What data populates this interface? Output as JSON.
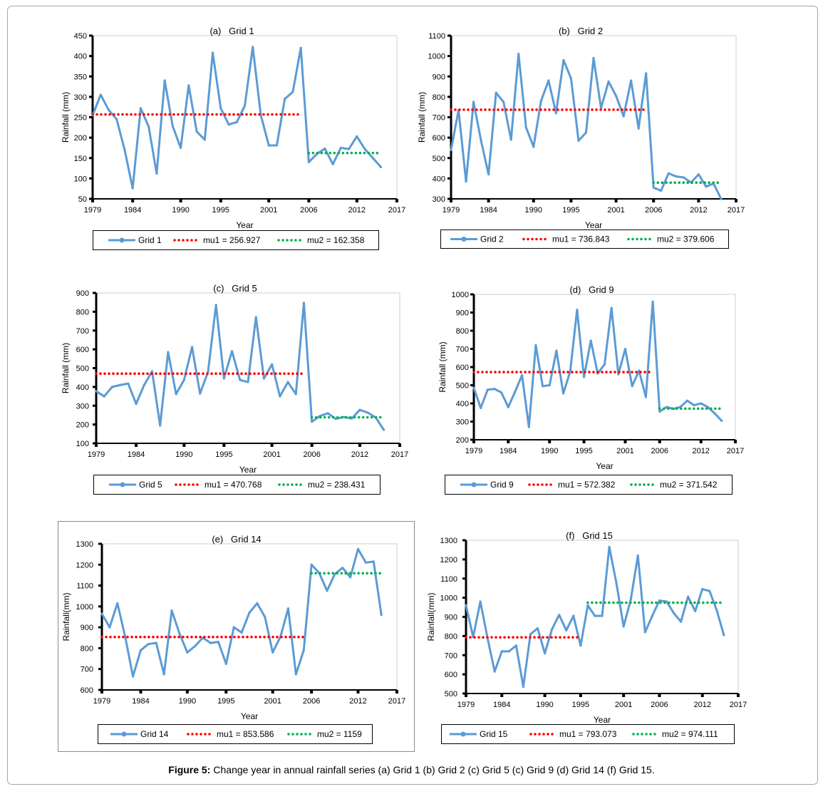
{
  "colors": {
    "rainfall_line": "#5B9BD5",
    "mu1_line": "#FF0000",
    "mu2_line": "#00B050",
    "frame": "#A6A6A6"
  },
  "figure": {
    "caption_label": "Figure 5:",
    "caption_text": "Change year in annual rainfall series (a) Grid 1 (b) Grid 2 (c) Grid 5 (c) Grid 9 (d) Grid 14 (f) Grid 15."
  },
  "chart_data": [
    {
      "type": "line",
      "title": "(a)   Grid 1",
      "xlabel": "Year",
      "ylabel": "Rainfall (mm)",
      "xlim": [
        1979,
        2017
      ],
      "ylim": [
        50,
        450
      ],
      "xticks": [
        1979,
        1984,
        1990,
        1995,
        2001,
        2006,
        2012,
        2017
      ],
      "yticks": [
        50,
        100,
        150,
        200,
        250,
        300,
        350,
        400,
        450
      ],
      "grid": false,
      "legend": "bottom",
      "x": [
        1979,
        1980,
        1981,
        1982,
        1983,
        1984,
        1985,
        1986,
        1987,
        1988,
        1989,
        1990,
        1991,
        1992,
        1993,
        1994,
        1995,
        1996,
        1997,
        1998,
        1999,
        2000,
        2001,
        2002,
        2003,
        2004,
        2005,
        2006,
        2007,
        2008,
        2009,
        2010,
        2011,
        2012,
        2013,
        2014,
        2015
      ],
      "series": [
        {
          "name": "Grid 1",
          "values": [
            255,
            305,
            268,
            245,
            170,
            76,
            272,
            227,
            112,
            340,
            228,
            175,
            328,
            215,
            195,
            408,
            272,
            232,
            238,
            278,
            422,
            256,
            181,
            181,
            295,
            312,
            420,
            140,
            160,
            173,
            135,
            175,
            172,
            203,
            172,
            150,
            128
          ]
        },
        {
          "name": "mu1 = 256.927",
          "x": [
            1979,
            2005
          ],
          "values": [
            256.927,
            256.927
          ]
        },
        {
          "name": "mu2 = 162.358",
          "x": [
            2006,
            2015
          ],
          "values": [
            162.358,
            162.358
          ]
        }
      ]
    },
    {
      "type": "line",
      "title": "(b)   Grid 2",
      "xlabel": "Year",
      "ylabel": "Rainfall (mm)",
      "xlim": [
        1979,
        2017
      ],
      "ylim": [
        300,
        1100
      ],
      "xticks": [
        1979,
        1984,
        1990,
        1995,
        2001,
        2006,
        2012,
        2017
      ],
      "yticks": [
        300,
        400,
        500,
        600,
        700,
        800,
        900,
        1000,
        1100
      ],
      "grid": false,
      "legend": "bottom",
      "x": [
        1979,
        1980,
        1981,
        1982,
        1983,
        1984,
        1985,
        1986,
        1987,
        1988,
        1989,
        1990,
        1991,
        1992,
        1993,
        1994,
        1995,
        1996,
        1997,
        1998,
        1999,
        2000,
        2001,
        2002,
        2003,
        2004,
        2005,
        2006,
        2007,
        2008,
        2009,
        2010,
        2011,
        2012,
        2013,
        2014,
        2015
      ],
      "series": [
        {
          "name": "Grid 2",
          "values": [
            540,
            735,
            385,
            775,
            585,
            420,
            820,
            775,
            590,
            1010,
            650,
            555,
            780,
            880,
            720,
            980,
            890,
            585,
            625,
            990,
            745,
            875,
            805,
            705,
            880,
            645,
            915,
            355,
            340,
            425,
            410,
            405,
            380,
            420,
            360,
            375,
            300
          ]
        },
        {
          "name": "mu1 = 736.843",
          "x": [
            1979,
            2005
          ],
          "values": [
            736.843,
            736.843
          ]
        },
        {
          "name": "mu2 = 379.606",
          "x": [
            2006,
            2015
          ],
          "values": [
            379.606,
            379.606
          ]
        }
      ]
    },
    {
      "type": "line",
      "title": "(c)   Grid 5",
      "xlabel": "Year",
      "ylabel": "Rainfall (mm)",
      "xlim": [
        1979,
        2017
      ],
      "ylim": [
        100,
        900
      ],
      "xticks": [
        1979,
        1984,
        1990,
        1995,
        2001,
        2006,
        2012,
        2017
      ],
      "yticks": [
        100,
        200,
        300,
        400,
        500,
        600,
        700,
        800,
        900
      ],
      "grid": false,
      "legend": "bottom",
      "x": [
        1979,
        1980,
        1981,
        1982,
        1983,
        1984,
        1985,
        1986,
        1987,
        1988,
        1989,
        1990,
        1991,
        1992,
        1993,
        1994,
        1995,
        1996,
        1997,
        1998,
        1999,
        2000,
        2001,
        2002,
        2003,
        2004,
        2005,
        2006,
        2007,
        2008,
        2009,
        2010,
        2011,
        2012,
        2013,
        2014,
        2015
      ],
      "series": [
        {
          "name": "Grid 5",
          "values": [
            377,
            350,
            400,
            410,
            418,
            310,
            410,
            483,
            195,
            585,
            362,
            437,
            612,
            365,
            480,
            836,
            445,
            590,
            437,
            426,
            771,
            445,
            520,
            350,
            426,
            362,
            847,
            215,
            245,
            260,
            230,
            240,
            232,
            278,
            263,
            237,
            172
          ]
        },
        {
          "name": "mu1 = 470.768",
          "x": [
            1979,
            2005
          ],
          "values": [
            470.768,
            470.768
          ]
        },
        {
          "name": "mu2 = 238.431",
          "x": [
            2006,
            2015
          ],
          "values": [
            238.431,
            238.431
          ]
        }
      ]
    },
    {
      "type": "line",
      "title": "(d)   Grid 9",
      "xlabel": "Year",
      "ylabel": "Rainfall (mm)",
      "xlim": [
        1979,
        2017
      ],
      "ylim": [
        200,
        1000
      ],
      "xticks": [
        1979,
        1984,
        1990,
        1995,
        2001,
        2006,
        2012,
        2017
      ],
      "yticks": [
        200,
        300,
        400,
        500,
        600,
        700,
        800,
        900,
        1000
      ],
      "grid": false,
      "legend": "bottom",
      "x": [
        1979,
        1980,
        1981,
        1982,
        1983,
        1984,
        1985,
        1986,
        1987,
        1988,
        1989,
        1990,
        1991,
        1992,
        1993,
        1994,
        1995,
        1996,
        1997,
        1998,
        1999,
        2000,
        2001,
        2002,
        2003,
        2004,
        2005,
        2006,
        2007,
        2008,
        2009,
        2010,
        2011,
        2012,
        2013,
        2014,
        2015
      ],
      "series": [
        {
          "name": "Grid 9",
          "values": [
            485,
            375,
            475,
            480,
            460,
            380,
            465,
            555,
            270,
            720,
            495,
            500,
            690,
            455,
            575,
            915,
            545,
            745,
            565,
            615,
            925,
            560,
            700,
            495,
            580,
            435,
            960,
            355,
            380,
            370,
            380,
            415,
            390,
            400,
            380,
            345,
            305
          ]
        },
        {
          "name": "mu1 = 572.382",
          "x": [
            1979,
            2005
          ],
          "values": [
            572.382,
            572.382
          ]
        },
        {
          "name": "mu2 = 371.542",
          "x": [
            2006,
            2015
          ],
          "values": [
            371.542,
            371.542
          ]
        }
      ]
    },
    {
      "type": "line",
      "title": "(e)   Grid 14",
      "xlabel": "Year",
      "ylabel": "Rainfall(mm)",
      "xlim": [
        1979,
        2017
      ],
      "ylim": [
        600,
        1300
      ],
      "xticks": [
        1979,
        1984,
        1990,
        1995,
        2001,
        2006,
        2012,
        2017
      ],
      "yticks": [
        600,
        700,
        800,
        900,
        1000,
        1100,
        1200,
        1300
      ],
      "grid": false,
      "legend": "bottom",
      "x": [
        1979,
        1980,
        1981,
        1982,
        1983,
        1984,
        1985,
        1986,
        1987,
        1988,
        1989,
        1990,
        1991,
        1992,
        1993,
        1994,
        1995,
        1996,
        1997,
        1998,
        1999,
        2000,
        2001,
        2002,
        2003,
        2004,
        2005,
        2006,
        2007,
        2008,
        2009,
        2010,
        2011,
        2012,
        2013,
        2014,
        2015
      ],
      "series": [
        {
          "name": "Grid 14",
          "values": [
            965,
            900,
            1015,
            855,
            665,
            790,
            820,
            825,
            675,
            980,
            870,
            780,
            810,
            850,
            825,
            830,
            725,
            900,
            875,
            970,
            1015,
            950,
            780,
            855,
            990,
            675,
            790,
            1200,
            1160,
            1075,
            1155,
            1185,
            1140,
            1275,
            1210,
            1215,
            960
          ]
        },
        {
          "name": "mu1 = 853.586",
          "x": [
            1979,
            2005
          ],
          "values": [
            853.586,
            853.586
          ]
        },
        {
          "name": "mu2 = 1159",
          "x": [
            2006,
            2015
          ],
          "values": [
            1159,
            1159
          ]
        }
      ]
    },
    {
      "type": "line",
      "title": "(f)   Grid 15",
      "xlabel": "Year",
      "ylabel": "Rainfall(mm)",
      "xlim": [
        1979,
        2017
      ],
      "ylim": [
        500,
        1300
      ],
      "xticks": [
        1979,
        1984,
        1990,
        1995,
        2001,
        2006,
        2012,
        2017
      ],
      "yticks": [
        500,
        600,
        700,
        800,
        900,
        1000,
        1100,
        1200,
        1300
      ],
      "grid": false,
      "legend": "bottom",
      "x": [
        1979,
        1980,
        1981,
        1982,
        1983,
        1984,
        1985,
        1986,
        1987,
        1988,
        1989,
        1990,
        1991,
        1992,
        1993,
        1994,
        1995,
        1996,
        1997,
        1998,
        1999,
        2000,
        2001,
        2002,
        2003,
        2004,
        2005,
        2006,
        2007,
        2008,
        2009,
        2010,
        2011,
        2012,
        2013,
        2014,
        2015
      ],
      "series": [
        {
          "name": "Grid 15",
          "values": [
            960,
            795,
            980,
            790,
            615,
            720,
            720,
            750,
            535,
            810,
            840,
            710,
            835,
            910,
            830,
            905,
            750,
            960,
            905,
            905,
            1265,
            1075,
            850,
            990,
            1220,
            820,
            905,
            985,
            980,
            920,
            875,
            1005,
            930,
            1045,
            1035,
            935,
            805
          ]
        },
        {
          "name": "mu1 = 793.073",
          "x": [
            1979,
            1995
          ],
          "values": [
            793.073,
            793.073
          ]
        },
        {
          "name": "mu2 = 974.111",
          "x": [
            1996,
            2015
          ],
          "values": [
            974.111,
            974.111
          ]
        }
      ]
    }
  ]
}
